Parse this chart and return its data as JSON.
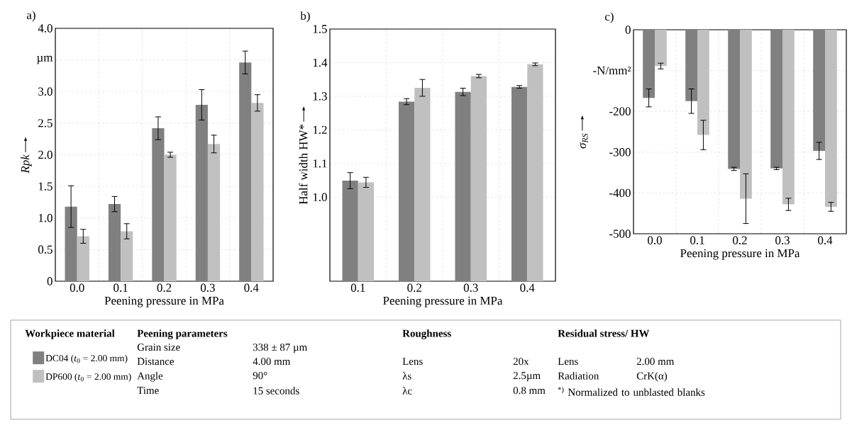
{
  "chart_data": [
    {
      "type": "bar",
      "title": "a)",
      "xlabel": "Peening pressure in MPa",
      "ylabel": "Rpk",
      "categories": [
        "0.0",
        "0.1",
        "0.2",
        "0.3",
        "0.4"
      ],
      "series": [
        {
          "name": "DC04 (*t*$_{0}$ = 2.00 mm)",
          "color": "#808080",
          "values": [
            1.18,
            1.22,
            2.42,
            2.79,
            3.46
          ],
          "errors": [
            0.33,
            0.12,
            0.18,
            0.24,
            0.18
          ]
        },
        {
          "name": "DP600 (*t*$_{0}$ = 2.00 mm)",
          "color": "#c0c0c0",
          "values": [
            0.71,
            0.79,
            2.0,
            2.17,
            2.82
          ],
          "errors": [
            0.11,
            0.12,
            0.04,
            0.14,
            0.13
          ]
        }
      ],
      "ylim": [
        0,
        4
      ],
      "yticks": [
        0,
        {
          "value": 0.5,
          "label": "0.5"
        },
        {
          "value": 1,
          "label": "1.0"
        },
        {
          "value": 1.5,
          "label": "1.5"
        },
        {
          "value": 2,
          "label": "2.0"
        },
        {
          "value": 2.5,
          "label": "2.5"
        },
        {
          "value": 3,
          "label": "3.0"
        },
        {
          "value": 3.5,
          "label": "µm"
        },
        {
          "value": 4,
          "label": "4.0"
        }
      ],
      "grid": true,
      "legend": "bottom",
      "legend_title": "Workpiece material"
    },
    {
      "type": "bar",
      "title": "b)",
      "xlabel": "Peening pressure in MPa",
      "ylabel": "Half width HW*",
      "categories": [
        "0.1",
        "0.2",
        "0.3",
        "0.4"
      ],
      "series": [
        {
          "color": "#808080",
          "values": [
            1.049,
            1.284,
            1.313,
            1.328
          ],
          "errors": [
            0.024,
            0.009,
            0.011,
            0.004
          ]
        },
        {
          "color": "#c0c0c0",
          "values": [
            1.044,
            1.325,
            1.36,
            1.395
          ],
          "errors": [
            0.015,
            0.025,
            0.005,
            0.004
          ]
        }
      ],
      "ylim": [
        0.75,
        1.5
      ],
      "yticks": [
        {
          "value": 1,
          "label": "1.0"
        },
        {
          "value": 1.1,
          "label": "1.1"
        },
        {
          "value": 1.2,
          "label": "1.2"
        },
        {
          "value": 1.3,
          "label": "1.3"
        },
        {
          "value": 1.4,
          "label": "1.4"
        },
        {
          "value": 1.5,
          "label": "1.5"
        }
      ],
      "grid": true
    },
    {
      "type": "bar",
      "title": "c)",
      "xlabel": "Peening pressure in MPa",
      "ylabel": "σ$_{RS}$",
      "categories": [
        "0.0",
        "0.1",
        "0.2",
        "0.3",
        "0.4"
      ],
      "series": [
        {
          "color": "#808080",
          "values": [
            -167,
            -175,
            -341,
            -340,
            -297
          ],
          "errors": [
            22,
            30,
            4,
            3,
            21
          ]
        },
        {
          "color": "#c0c0c0",
          "values": [
            -89,
            -258,
            -414,
            -428,
            -434
          ],
          "errors": [
            7,
            36,
            61,
            15,
            11
          ]
        }
      ],
      "ylim": [
        -500,
        0
      ],
      "yticks": [
        -500,
        -400,
        -300,
        -200,
        {
          "value": -100,
          "label": "-N/mm²"
        },
        0
      ],
      "grid": true
    },
    {
      "type": "other",
      "annotations": [
        "Peening parameters",
        "Grain size",
        "338 ± 87 µm",
        "Distance",
        "4.00 mm",
        "Angle",
        "90°",
        "Time",
        "15 seconds",
        "Roughness",
        "Lens",
        "20x",
        "λs",
        "2.5µm",
        "λc",
        "0.8 mm",
        "Residual stress/ HW",
        "Lens",
        "2.00 mm",
        "Radiation",
        "CrK(α)",
        "$^{*)}$ Normalized to unblasted blanks"
      ]
    }
  ]
}
